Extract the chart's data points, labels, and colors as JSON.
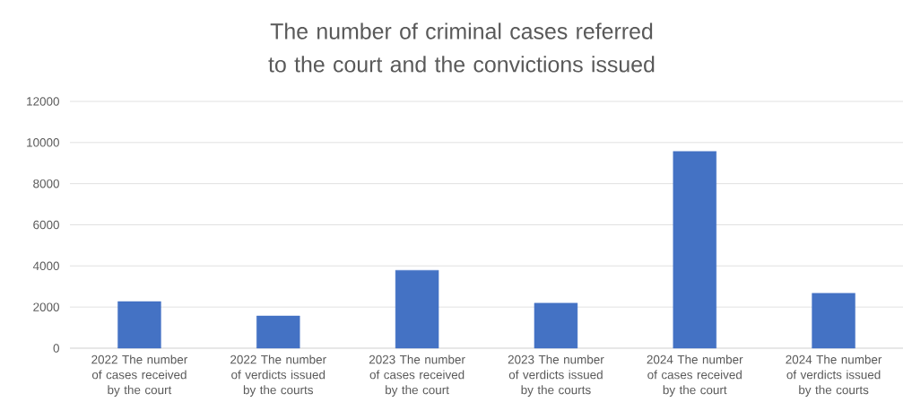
{
  "chart_data": {
    "type": "bar",
    "title": "The number of criminal cases referred to the court and the convictions issued",
    "categories": [
      "2022 The number of cases received by the court",
      "2022 The number of verdicts issued by the courts",
      "2023 The number of cases received by the court",
      "2023 The number of verdicts issued by the courts",
      "2024 The number of cases received by the court",
      "2024 The number of verdicts issued by the courts"
    ],
    "values": [
      2270,
      1570,
      3790,
      2190,
      9570,
      2670
    ],
    "color": "#4472c4",
    "ylim": [
      0,
      12000
    ],
    "yticks": [
      0,
      2000,
      4000,
      6000,
      8000,
      10000,
      12000
    ],
    "grid": "y"
  }
}
